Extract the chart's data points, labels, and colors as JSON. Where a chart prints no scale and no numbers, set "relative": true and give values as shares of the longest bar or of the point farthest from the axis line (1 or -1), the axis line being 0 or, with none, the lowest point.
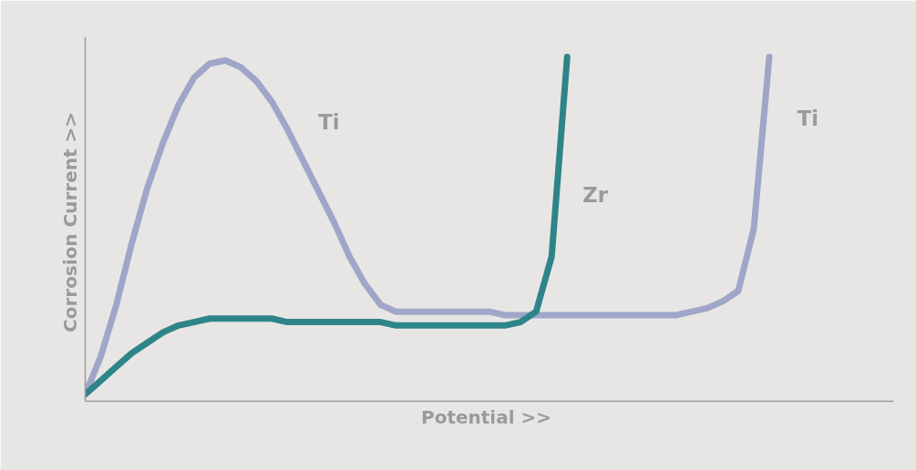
{
  "chart_data": {
    "type": "line",
    "relative": true,
    "xlabel": "Potential  >>",
    "ylabel": "Corrosion Current  >>",
    "categories": [
      null,
      null,
      null,
      null,
      null,
      null,
      null,
      null,
      null,
      null,
      null,
      null,
      null,
      null,
      null,
      null,
      null,
      null,
      null,
      null,
      null,
      null,
      null,
      null,
      null,
      null,
      null,
      null,
      null,
      null,
      null,
      null,
      null,
      null,
      null,
      null,
      null,
      null,
      null,
      null,
      null,
      null,
      null,
      null,
      null,
      null,
      null,
      null,
      null,
      null,
      null,
      null,
      null
    ],
    "series": [
      {
        "name": "Ti",
        "color": "#9fa6c8",
        "values": [
          0.02,
          0.13,
          0.28,
          0.46,
          0.62,
          0.75,
          0.86,
          0.94,
          0.98,
          0.99,
          0.97,
          0.93,
          0.87,
          0.79,
          0.7,
          0.61,
          0.52,
          0.42,
          0.34,
          0.28,
          0.26,
          0.26,
          0.26,
          0.26,
          0.26,
          0.26,
          0.26,
          0.25,
          0.25,
          0.25,
          0.25,
          0.25,
          0.25,
          0.25,
          0.25,
          0.25,
          0.25,
          0.25,
          0.25,
          0.26,
          0.27,
          0.29,
          0.32,
          0.5,
          1.0,
          null,
          null,
          null,
          null,
          null,
          null,
          null,
          null
        ]
      },
      {
        "name": "Zr",
        "color": "#2e8589",
        "values": [
          0.02,
          0.06,
          0.1,
          0.14,
          0.17,
          0.2,
          0.22,
          0.23,
          0.24,
          0.24,
          0.24,
          0.24,
          0.24,
          0.23,
          0.23,
          0.23,
          0.23,
          0.23,
          0.23,
          0.23,
          0.22,
          0.22,
          0.22,
          0.22,
          0.22,
          0.22,
          0.22,
          0.22,
          0.23,
          0.26,
          0.42,
          1.0,
          null,
          null,
          null,
          null,
          null,
          null,
          null,
          null,
          null,
          null,
          null,
          null,
          null,
          null,
          null,
          null,
          null,
          null,
          null,
          null,
          null
        ]
      }
    ],
    "annotations": [
      "Ti"
    ],
    "legend": false,
    "line_style": "solid",
    "marker": "none"
  }
}
